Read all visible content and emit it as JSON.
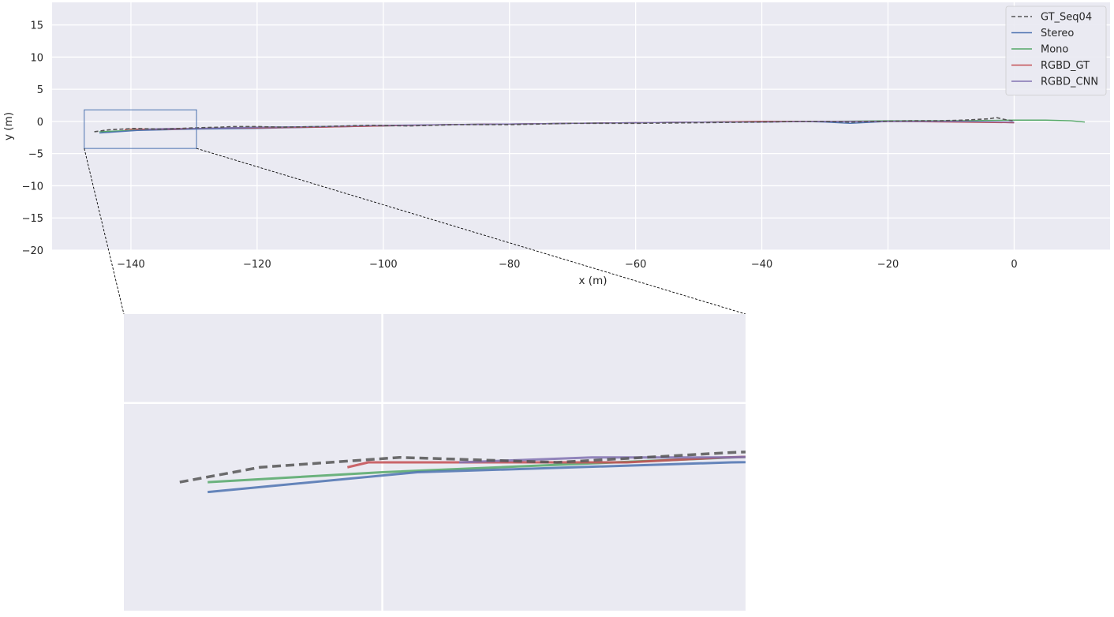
{
  "chart_data": {
    "type": "line",
    "title": "",
    "xlabel": "x (m)",
    "ylabel": "y (m)",
    "xlim": [
      -152.5,
      15.2
    ],
    "ylim": [
      -20,
      18.5
    ],
    "xticks": [
      -140,
      -120,
      -100,
      -80,
      -60,
      -40,
      -20,
      0
    ],
    "yticks": [
      15,
      10,
      5,
      0,
      -5,
      -10,
      -15,
      -20
    ],
    "xtick_labels": [
      "−140",
      "−120",
      "−100",
      "−80",
      "−60",
      "−40",
      "−20",
      "0"
    ],
    "ytick_labels": [
      "15",
      "10",
      "5",
      "0",
      "−5",
      "−10",
      "−15",
      "−20"
    ],
    "grid": true,
    "legend_position": "top-right",
    "background": "#eaeaf2",
    "series": [
      {
        "name": "GT_Seq04",
        "color": "#555555",
        "dash": true,
        "x": [
          -145.8,
          -143.5,
          -139.5,
          -135,
          -130,
          -126,
          -124,
          -120,
          -116,
          -110,
          -102,
          -96,
          -88,
          -80,
          -70,
          -60,
          -50,
          -40,
          -34,
          -30,
          -26,
          -22,
          -16,
          -12,
          -8,
          -6,
          -4,
          -2.8,
          -2,
          -1,
          0
        ],
        "y": [
          -1.6,
          -1.3,
          -1.1,
          -1.2,
          -1.0,
          -0.9,
          -0.8,
          -0.8,
          -0.9,
          -0.8,
          -0.6,
          -0.7,
          -0.5,
          -0.5,
          -0.3,
          -0.3,
          -0.2,
          -0.1,
          0.0,
          0.0,
          -0.1,
          0.0,
          0.1,
          0.1,
          0.2,
          0.3,
          0.4,
          0.6,
          0.4,
          0.2,
          0.1
        ]
      },
      {
        "name": "Stereo",
        "color": "#4c72b0",
        "dash": false,
        "x": [
          -145.0,
          -139.0,
          -130,
          -120,
          -116,
          -110,
          -100,
          -90,
          -80,
          -70,
          -60,
          -50,
          -40,
          -34,
          -30,
          -26,
          -20,
          -10,
          0
        ],
        "y": [
          -1.8,
          -1.4,
          -1.2,
          -1.1,
          -1.0,
          -0.9,
          -0.7,
          -0.5,
          -0.4,
          -0.3,
          -0.2,
          -0.1,
          -0.1,
          0.0,
          -0.1,
          -0.3,
          0.0,
          0.0,
          -0.2
        ]
      },
      {
        "name": "Mono",
        "color": "#55a868",
        "dash": false,
        "x": [
          -145.0,
          -140,
          -130,
          -120,
          -110,
          -100,
          -90,
          -80,
          -70,
          -60,
          -50,
          -40,
          -30,
          -20,
          -10,
          0,
          5,
          9,
          11.2
        ],
        "y": [
          -1.6,
          -1.4,
          -1.1,
          -0.9,
          -0.8,
          -0.7,
          -0.5,
          -0.4,
          -0.3,
          -0.2,
          -0.1,
          0.0,
          0.0,
          0.1,
          0.1,
          0.2,
          0.2,
          0.1,
          -0.1
        ]
      },
      {
        "name": "RGBD_GT",
        "color": "#c44e52",
        "dash": false,
        "x": [
          -141.0,
          -140.4,
          -137,
          -133,
          -130.2,
          -125,
          -120,
          -110,
          -100,
          -90,
          -80,
          -70,
          -60,
          -50,
          -40,
          -30,
          -20,
          -10,
          0
        ],
        "y": [
          -1.3,
          -1.2,
          -1.2,
          -1.2,
          -1.1,
          -1.0,
          -1.0,
          -0.9,
          -0.7,
          -0.5,
          -0.4,
          -0.3,
          -0.2,
          -0.1,
          0.0,
          0.0,
          0.0,
          -0.1,
          -0.2
        ]
      },
      {
        "name": "RGBD_CNN",
        "color": "#8172b2",
        "dash": false,
        "x": [
          -137.8,
          -134,
          -130.1,
          -125,
          -120,
          -110,
          -100,
          -90,
          -80,
          -70,
          -60,
          -50,
          -40,
          -30,
          -20,
          -10,
          0
        ],
        "y": [
          -1.2,
          -1.1,
          -1.1,
          -1.0,
          -0.9,
          -0.8,
          -0.6,
          -0.5,
          -0.4,
          -0.3,
          -0.2,
          -0.1,
          -0.1,
          0.0,
          0.0,
          0.0,
          -0.1
        ]
      }
    ],
    "zoom_inset": {
      "xlim": [
        -147.4,
        -129.6
      ],
      "ylim": [
        -4.2,
        1.8
      ]
    }
  }
}
